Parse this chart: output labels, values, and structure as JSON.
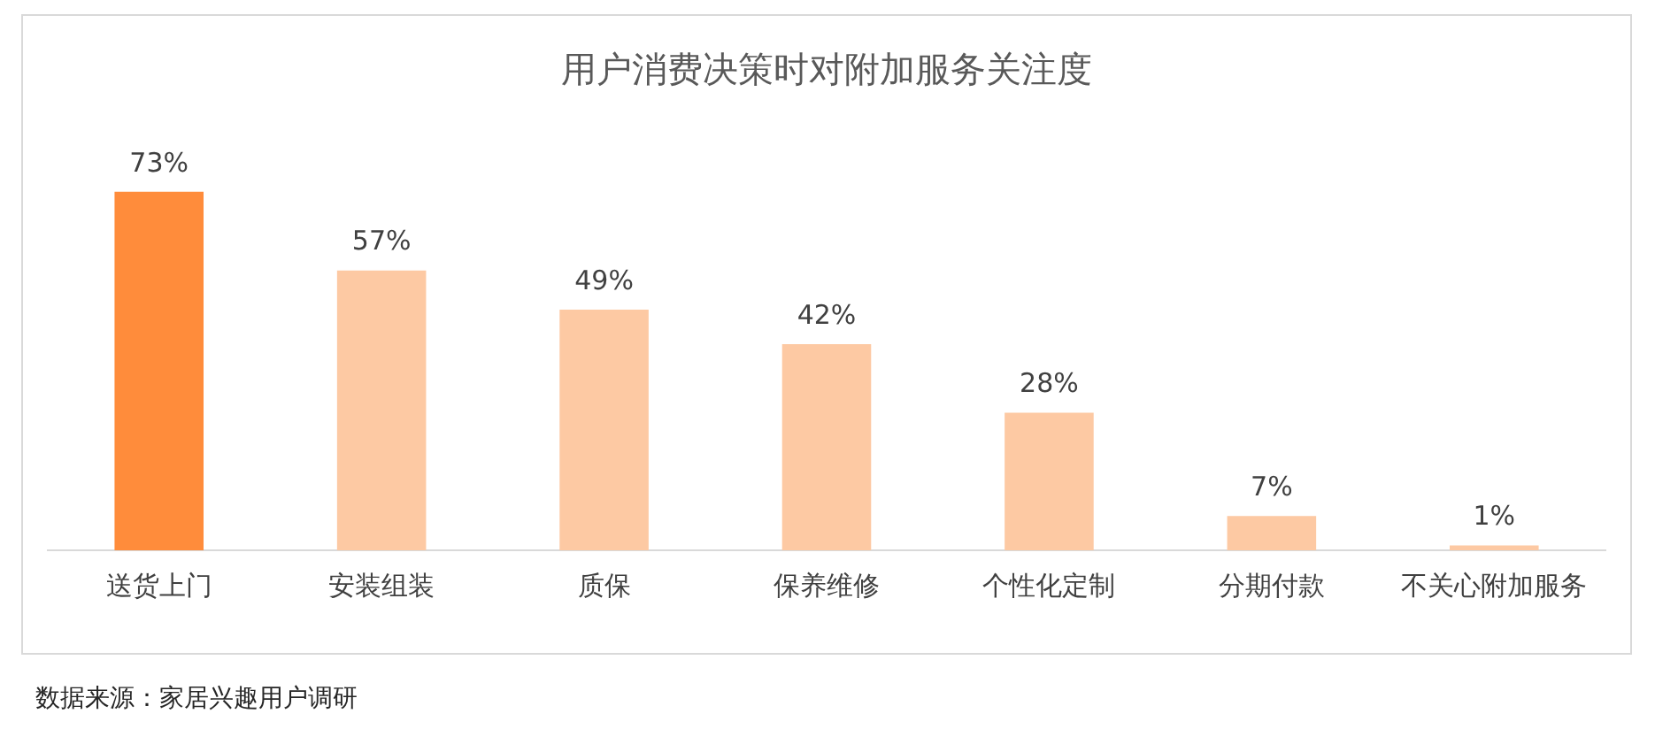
{
  "chart_data": {
    "type": "bar",
    "title": "用户消费决策时对附加服务关注度",
    "categories": [
      "送货上门",
      "安装组装",
      "质保",
      "保养维修",
      "个性化定制",
      "分期付款",
      "不关心附加服务"
    ],
    "values": [
      73,
      57,
      49,
      42,
      28,
      7,
      1
    ],
    "colors": [
      "#ff8c3b",
      "#fdc9a3",
      "#fdc9a3",
      "#fdc9a3",
      "#fdc9a3",
      "#fdc9a3",
      "#fdc9a3"
    ],
    "value_labels": [
      "73%",
      "57%",
      "49%",
      "42%",
      "28%",
      "7%",
      "1%"
    ],
    "grid": false,
    "legend": false,
    "annotations": [
      "数据来源：家居兴趣用户调研"
    ]
  }
}
